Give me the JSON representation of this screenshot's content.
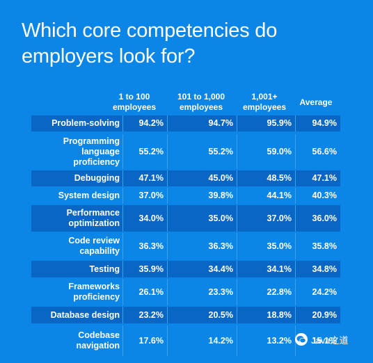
{
  "chart_data": {
    "type": "table",
    "title": "Which core competencies do employers look for?",
    "columns": [
      "1 to 100\nemployees",
      "101 to 1,000\nemployees",
      "1,001+\nemployees",
      "Average"
    ],
    "rows": [
      {
        "label": "Problem-solving",
        "values": [
          "94.2%",
          "94.7%",
          "95.9%",
          "94.9%"
        ]
      },
      {
        "label": "Programming\nlanguage\nproficiency",
        "values": [
          "55.2%",
          "55.2%",
          "59.0%",
          "56.6%"
        ]
      },
      {
        "label": "Debugging",
        "values": [
          "47.1%",
          "45.0%",
          "48.5%",
          "47.1%"
        ]
      },
      {
        "label": "System design",
        "values": [
          "37.0%",
          "39.8%",
          "44.1%",
          "40.3%"
        ]
      },
      {
        "label": "Performance\noptimization",
        "values": [
          "34.0%",
          "35.0%",
          "37.0%",
          "36.0%"
        ]
      },
      {
        "label": "Code review\ncapability",
        "values": [
          "36.3%",
          "36.3%",
          "35.0%",
          "35.8%"
        ]
      },
      {
        "label": "Testing",
        "values": [
          "35.9%",
          "34.4%",
          "34.1%",
          "34.8%"
        ]
      },
      {
        "label": "Frameworks\nproficiency",
        "values": [
          "26.1%",
          "23.3%",
          "22.8%",
          "24.2%"
        ]
      },
      {
        "label": "Database design",
        "values": [
          "23.2%",
          "20.5%",
          "18.8%",
          "20.9%"
        ]
      },
      {
        "label": "Codebase\nnavigation",
        "values": [
          "17.6%",
          "14.2%",
          "13.2%",
          "15.1%"
        ]
      }
    ]
  },
  "watermark": {
    "text": "Java之道",
    "icon": "wechat-icon"
  },
  "colors": {
    "background": "#0b86e6",
    "row_band": "#0a66c4",
    "text": "#ffffff"
  }
}
